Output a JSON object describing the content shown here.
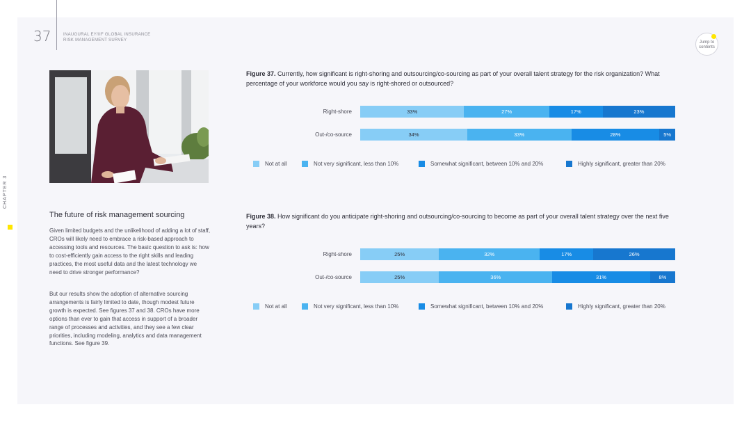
{
  "header": {
    "page_number": "37",
    "doc_title": "INAUGURAL EY/IIF GLOBAL INSURANCE\nRISK MANAGEMENT SURVEY",
    "jump_label": "Jump to\ncontents"
  },
  "sidebar": {
    "chapter": "CHAPTER 3"
  },
  "article": {
    "heading": "The future of risk management sourcing",
    "paragraph_1": "Given limited budgets and the unlikelihood of adding a lot of staff, CROs will likely need to embrace a risk-based approach to accessing tools and resources. The basic question to ask is: how to cost-efficiently gain access to the right skills and leading practices, the most useful data and the latest technology we need to drive stronger performance?",
    "paragraph_2": "But our results show the adoption of alternative sourcing arrangements is fairly limited to date, though modest future growth is expected. See figures 37 and 38. CROs have more options than ever to gain that access in support of a broader range of processes and activities, and they see a few clear priorities, including modeling, analytics and data management functions. See figure 39."
  },
  "colors": {
    "not_at_all": "#87cdf6",
    "not_very": "#4ab3f0",
    "somewhat": "#188ce5",
    "highly": "#1777cf",
    "accent": "#ffe600"
  },
  "chart_data": [
    {
      "type": "bar",
      "stacked": true,
      "orientation": "horizontal",
      "figure_label": "Figure 37.",
      "title": "Currently, how significant is right-shoring and outsourcing/co-sourcing as part of your overall talent strategy for the risk organization? What percentage of your workforce would you say is right-shored or outsourced?",
      "categories": [
        "Right-shore",
        "Out-/co-source"
      ],
      "series": [
        {
          "name": "Not at all",
          "values": [
            33,
            34
          ],
          "labels": [
            "33%",
            "34%"
          ]
        },
        {
          "name": "Not very significant, less than 10%",
          "values": [
            27,
            33
          ],
          "labels": [
            "27%",
            "33%"
          ]
        },
        {
          "name": "Somewhat significant, between 10% and 20%",
          "values": [
            17,
            28
          ],
          "labels": [
            "17%",
            "28%"
          ]
        },
        {
          "name": "Highly significant, greater than 20%",
          "values": [
            23,
            5
          ],
          "labels": [
            "23%",
            "5%"
          ]
        }
      ],
      "legend_position": "bottom"
    },
    {
      "type": "bar",
      "stacked": true,
      "orientation": "horizontal",
      "figure_label": "Figure 38.",
      "title": "How significant do you anticipate right-shoring and outsourcing/co-sourcing to become as part of your overall talent strategy over the next five years?",
      "categories": [
        "Right-shore",
        "Out-/co-source"
      ],
      "series": [
        {
          "name": "Not at all",
          "values": [
            25,
            25
          ],
          "labels": [
            "25%",
            "25%"
          ]
        },
        {
          "name": "Not very significant, less than 10%",
          "values": [
            32,
            36
          ],
          "labels": [
            "32%",
            "36%"
          ]
        },
        {
          "name": "Somewhat significant, between 10% and 20%",
          "values": [
            17,
            31
          ],
          "labels": [
            "17%",
            "31%"
          ]
        },
        {
          "name": "Highly significant, greater than 20%",
          "values": [
            26,
            8
          ],
          "labels": [
            "26%",
            "8%"
          ]
        }
      ],
      "legend_position": "bottom"
    }
  ]
}
